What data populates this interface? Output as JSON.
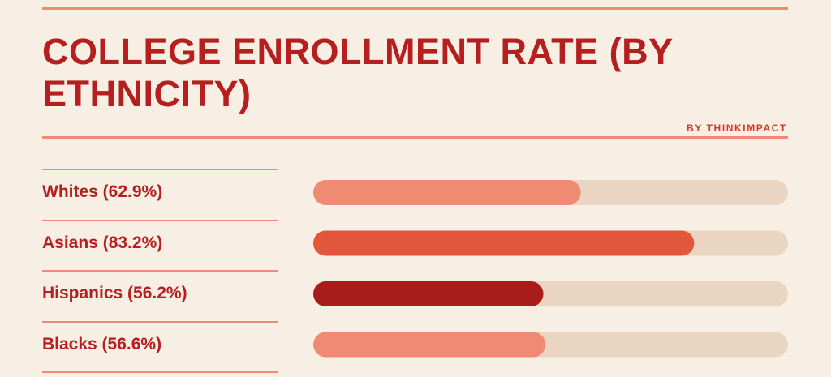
{
  "header": {
    "title": "COLLEGE ENROLLMENT RATE (BY ETHNICITY)",
    "byline": "BY THINKIMPACT"
  },
  "chart_data": {
    "type": "bar",
    "orientation": "horizontal",
    "categories": [
      "Whites (62.9%)",
      "Asians (83.2%)",
      "Hispanics (56.2%)",
      "Blacks (56.6%)"
    ],
    "values": [
      62.9,
      83.2,
      56.2,
      56.6
    ],
    "colors": [
      "#ef8b72",
      "#e2563c",
      "#a81c19",
      "#ef8b72"
    ],
    "track_color": "#ead5c2",
    "xlim": [
      15,
      100
    ]
  }
}
